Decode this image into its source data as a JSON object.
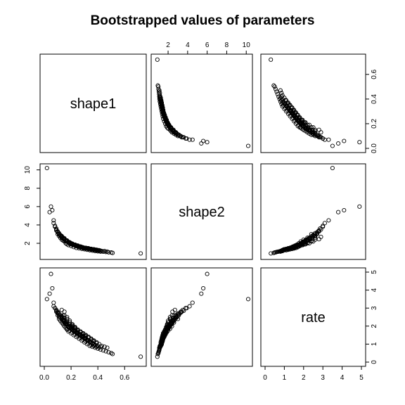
{
  "chart_data": {
    "type": "scatter",
    "title": "Bootstrapped values of parameters",
    "variables": [
      "shape1",
      "shape2",
      "rate"
    ],
    "ranges": {
      "shape1": [
        0.0,
        0.73
      ],
      "shape2": [
        0.7,
        10.2
      ],
      "rate": [
        0.0,
        5.0
      ]
    },
    "ticks": {
      "shape1": [
        0.0,
        0.2,
        0.4,
        0.6
      ],
      "shape2": [
        2,
        4,
        6,
        8,
        10
      ],
      "rate": [
        0,
        1,
        2,
        3,
        4,
        5
      ]
    },
    "tick_labels": {
      "shape1": [
        "0.0",
        "0.2",
        "0.4",
        "0.6"
      ],
      "shape2": [
        "2",
        "4",
        "6",
        "8",
        "10"
      ],
      "rate": [
        "0",
        "1",
        "2",
        "3",
        "4",
        "5"
      ]
    },
    "axis_placement": {
      "top": "shape2",
      "right_upper": "shape1",
      "right_lower": "rate",
      "left": "shape2",
      "bottom_left": "shape1",
      "bottom_right": "rate"
    },
    "points": {
      "shape1": [
        0.72,
        0.02,
        0.05,
        0.06,
        0.04,
        0.07,
        0.08,
        0.09,
        0.1,
        0.11,
        0.12,
        0.13,
        0.14,
        0.15,
        0.16,
        0.17,
        0.18,
        0.2,
        0.22,
        0.24,
        0.26,
        0.28,
        0.3,
        0.32,
        0.34,
        0.36,
        0.38,
        0.4,
        0.42,
        0.44,
        0.46,
        0.48,
        0.5,
        0.51,
        0.13,
        0.15,
        0.17,
        0.19,
        0.21,
        0.23,
        0.25,
        0.27,
        0.29,
        0.31,
        0.33,
        0.35,
        0.1,
        0.12,
        0.14,
        0.16,
        0.18,
        0.2,
        0.22,
        0.24,
        0.26,
        0.28,
        0.3,
        0.11,
        0.13,
        0.15,
        0.17,
        0.19,
        0.21,
        0.23,
        0.25,
        0.27,
        0.29,
        0.31,
        0.33,
        0.35,
        0.37,
        0.39,
        0.41,
        0.14,
        0.16,
        0.18,
        0.2,
        0.22,
        0.24,
        0.26,
        0.28,
        0.3,
        0.32,
        0.34,
        0.36,
        0.38,
        0.4,
        0.12,
        0.14,
        0.16,
        0.18,
        0.2,
        0.22,
        0.24,
        0.26,
        0.28,
        0.3,
        0.32,
        0.34,
        0.15,
        0.17,
        0.19,
        0.21,
        0.23,
        0.25,
        0.27,
        0.29,
        0.31,
        0.33,
        0.09,
        0.11,
        0.13,
        0.15,
        0.17,
        0.19,
        0.21,
        0.23,
        0.25,
        0.27,
        0.29,
        0.31,
        0.33,
        0.35,
        0.37,
        0.16,
        0.18,
        0.2,
        0.22,
        0.24,
        0.26,
        0.28,
        0.3,
        0.32,
        0.34,
        0.36,
        0.38,
        0.08,
        0.1,
        0.12,
        0.14,
        0.16,
        0.18,
        0.2,
        0.22,
        0.24,
        0.26,
        0.28,
        0.3,
        0.32,
        0.14,
        0.17,
        0.19,
        0.21,
        0.23,
        0.25,
        0.27,
        0.29,
        0.31,
        0.33,
        0.35,
        0.37,
        0.39,
        0.43,
        0.47,
        0.11,
        0.13,
        0.15,
        0.17,
        0.19,
        0.21,
        0.23,
        0.25,
        0.27,
        0.29,
        0.31,
        0.12,
        0.14,
        0.16,
        0.18,
        0.2,
        0.22,
        0.24,
        0.26,
        0.28,
        0.3,
        0.32,
        0.34,
        0.36,
        0.38,
        0.4,
        0.42,
        0.1,
        0.13,
        0.15,
        0.18,
        0.2,
        0.23,
        0.25,
        0.28,
        0.3,
        0.33,
        0.36,
        0.39,
        0.07,
        0.09,
        0.11,
        0.13,
        0.15,
        0.17,
        0.19,
        0.21,
        0.23,
        0.25,
        0.27,
        0.29,
        0.31,
        0.15,
        0.17,
        0.19,
        0.21,
        0.23,
        0.25,
        0.27,
        0.29,
        0.31,
        0.33,
        0.35,
        0.37,
        0.41,
        0.45
      ],
      "shape2": [
        0.9,
        10.2,
        6.0,
        5.6,
        5.4,
        4.5,
        3.9,
        3.4,
        3.0,
        2.8,
        2.6,
        2.4,
        2.3,
        2.2,
        2.0,
        1.9,
        1.8,
        1.7,
        1.6,
        1.5,
        1.45,
        1.4,
        1.35,
        1.3,
        1.25,
        1.2,
        1.15,
        1.12,
        1.1,
        1.08,
        1.05,
        1.02,
        1.0,
        0.95,
        2.7,
        2.4,
        2.2,
        2.0,
        1.9,
        1.8,
        1.7,
        1.6,
        1.5,
        1.45,
        1.4,
        1.35,
        3.2,
        2.9,
        2.6,
        2.3,
        2.1,
        1.95,
        1.85,
        1.75,
        1.65,
        1.55,
        1.5,
        3.0,
        2.6,
        2.4,
        2.2,
        2.0,
        1.85,
        1.75,
        1.65,
        1.55,
        1.45,
        1.4,
        1.35,
        1.3,
        1.25,
        1.2,
        1.15,
        2.5,
        2.3,
        2.1,
        1.95,
        1.85,
        1.75,
        1.6,
        1.55,
        1.5,
        1.45,
        1.4,
        1.35,
        1.3,
        1.25,
        2.8,
        2.5,
        2.25,
        2.05,
        1.9,
        1.8,
        1.7,
        1.6,
        1.55,
        1.5,
        1.45,
        1.4,
        2.45,
        2.2,
        2.0,
        1.9,
        1.8,
        1.7,
        1.6,
        1.5,
        1.45,
        1.4,
        3.5,
        3.0,
        2.7,
        2.4,
        2.2,
        2.05,
        1.9,
        1.8,
        1.7,
        1.6,
        1.55,
        1.5,
        1.45,
        1.4,
        1.35,
        2.3,
        2.1,
        1.95,
        1.85,
        1.75,
        1.65,
        1.55,
        1.5,
        1.45,
        1.4,
        1.35,
        1.3,
        3.8,
        3.3,
        2.9,
        2.6,
        2.35,
        2.15,
        2.0,
        1.85,
        1.75,
        1.65,
        1.6,
        1.5,
        1.45,
        2.6,
        2.25,
        2.05,
        1.9,
        1.8,
        1.7,
        1.6,
        1.5,
        1.45,
        1.4,
        1.35,
        1.3,
        1.25,
        1.15,
        1.1,
        3.1,
        2.8,
        2.5,
        2.3,
        2.1,
        1.95,
        1.85,
        1.75,
        1.65,
        1.55,
        1.5,
        2.9,
        2.6,
        2.35,
        2.15,
        2.0,
        1.85,
        1.75,
        1.65,
        1.55,
        1.5,
        1.45,
        1.4,
        1.35,
        1.3,
        1.25,
        1.2,
        3.3,
        2.75,
        2.45,
        2.15,
        2.0,
        1.8,
        1.7,
        1.6,
        1.5,
        1.45,
        1.35,
        1.3,
        4.2,
        3.6,
        3.1,
        2.75,
        2.45,
        2.2,
        2.05,
        1.9,
        1.8,
        1.7,
        1.6,
        1.55,
        1.5,
        2.55,
        2.3,
        2.1,
        1.95,
        1.85,
        1.75,
        1.65,
        1.55,
        1.5,
        1.45,
        1.4,
        1.35,
        1.25,
        1.15
      ],
      "rate": [
        0.3,
        3.5,
        4.9,
        4.1,
        3.8,
        3.3,
        3.0,
        2.8,
        2.6,
        2.5,
        2.3,
        2.2,
        2.1,
        2.0,
        1.9,
        1.8,
        1.7,
        1.6,
        1.5,
        1.4,
        1.3,
        1.2,
        1.1,
        1.0,
        0.9,
        0.85,
        0.8,
        0.75,
        0.7,
        0.65,
        0.6,
        0.55,
        0.5,
        0.45,
        2.9,
        2.6,
        2.4,
        2.2,
        2.0,
        1.9,
        1.8,
        1.7,
        1.6,
        1.5,
        1.4,
        1.3,
        2.7,
        2.5,
        2.3,
        2.1,
        2.0,
        1.85,
        1.75,
        1.65,
        1.5,
        1.4,
        1.3,
        2.4,
        2.2,
        2.0,
        1.85,
        1.75,
        1.65,
        1.55,
        1.45,
        1.35,
        1.25,
        1.15,
        1.05,
        0.95,
        0.9,
        0.85,
        0.8,
        2.3,
        2.1,
        1.95,
        1.85,
        1.75,
        1.6,
        1.5,
        1.4,
        1.3,
        1.2,
        1.1,
        1.0,
        0.95,
        0.9,
        2.6,
        2.35,
        2.15,
        2.0,
        1.9,
        1.75,
        1.65,
        1.55,
        1.45,
        1.35,
        1.25,
        1.15,
        2.8,
        2.5,
        2.3,
        2.1,
        1.95,
        1.8,
        1.7,
        1.6,
        1.5,
        1.4,
        2.9,
        2.7,
        2.45,
        2.25,
        2.05,
        1.9,
        1.8,
        1.7,
        1.6,
        1.5,
        1.4,
        1.3,
        1.2,
        1.1,
        1.0,
        2.2,
        2.0,
        1.9,
        1.75,
        1.65,
        1.55,
        1.45,
        1.35,
        1.25,
        1.15,
        1.05,
        0.95,
        3.0,
        2.75,
        2.5,
        2.3,
        2.1,
        1.95,
        1.85,
        1.7,
        1.6,
        1.5,
        1.4,
        1.3,
        1.2,
        2.6,
        2.4,
        2.2,
        2.05,
        1.9,
        1.8,
        1.7,
        1.6,
        1.5,
        1.4,
        1.3,
        1.2,
        1.1,
        0.9,
        0.8,
        2.7,
        2.5,
        2.3,
        2.1,
        1.95,
        1.85,
        1.75,
        1.65,
        1.55,
        1.45,
        1.35,
        2.5,
        2.3,
        2.15,
        2.0,
        1.85,
        1.75,
        1.65,
        1.55,
        1.45,
        1.35,
        1.25,
        1.15,
        1.05,
        0.95,
        0.9,
        0.85,
        2.8,
        2.55,
        2.35,
        2.1,
        1.95,
        1.8,
        1.7,
        1.55,
        1.45,
        1.35,
        1.2,
        1.05,
        3.1,
        2.85,
        2.6,
        2.4,
        2.2,
        2.05,
        1.9,
        1.8,
        1.7,
        1.6,
        1.5,
        1.4,
        1.3,
        2.45,
        2.25,
        2.1,
        1.95,
        1.85,
        1.75,
        1.65,
        1.55,
        1.45,
        1.35,
        1.25,
        1.15,
        1.0,
        0.85
      ]
    }
  }
}
